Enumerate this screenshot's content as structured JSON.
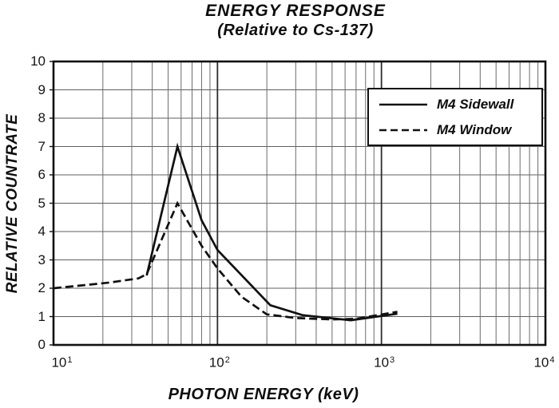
{
  "chart_data": {
    "type": "line",
    "title": "ENERGY RESPONSE",
    "subtitle": "(Relative to Cs-137)",
    "xlabel": "PHOTON ENERGY (keV)",
    "ylabel": "RELATIVE COUNTRATE",
    "x_axis": {
      "scale": "log",
      "min": 10,
      "max": 10000,
      "unit": "keV",
      "ticks": [
        {
          "base": "10",
          "exp": 1,
          "label": "10¹"
        },
        {
          "base": "10",
          "exp": 2,
          "label": "10²"
        },
        {
          "base": "10",
          "exp": 3,
          "label": "10³"
        },
        {
          "base": "10",
          "exp": 4,
          "label": "10⁴"
        }
      ]
    },
    "y_axis": {
      "scale": "linear",
      "min": 0,
      "max": 10,
      "ticks": [
        0,
        1,
        2,
        3,
        4,
        5,
        6,
        7,
        8,
        9,
        10
      ]
    },
    "grid": {
      "horizontal": "on at each integer",
      "vertical": "log decades with minor lines at 2-9"
    },
    "legend_position": "top-right inside plot",
    "series": [
      {
        "name": "M4 Sidewall",
        "style": "solid",
        "color": "#111111",
        "points": [
          [
            37,
            2.45
          ],
          [
            57,
            7.0
          ],
          [
            80,
            4.4
          ],
          [
            100,
            3.35
          ],
          [
            210,
            1.4
          ],
          [
            330,
            1.05
          ],
          [
            650,
            0.87
          ],
          [
            1250,
            1.1
          ]
        ]
      },
      {
        "name": "M4 Window",
        "style": "dashed",
        "color": "#111111",
        "points": [
          [
            10,
            2.0
          ],
          [
            22,
            2.2
          ],
          [
            33,
            2.35
          ],
          [
            37,
            2.5
          ],
          [
            57,
            5.0
          ],
          [
            80,
            3.5
          ],
          [
            100,
            2.7
          ],
          [
            140,
            1.7
          ],
          [
            200,
            1.08
          ],
          [
            300,
            0.95
          ],
          [
            500,
            0.9
          ],
          [
            700,
            0.92
          ],
          [
            1250,
            1.17
          ]
        ]
      }
    ]
  }
}
